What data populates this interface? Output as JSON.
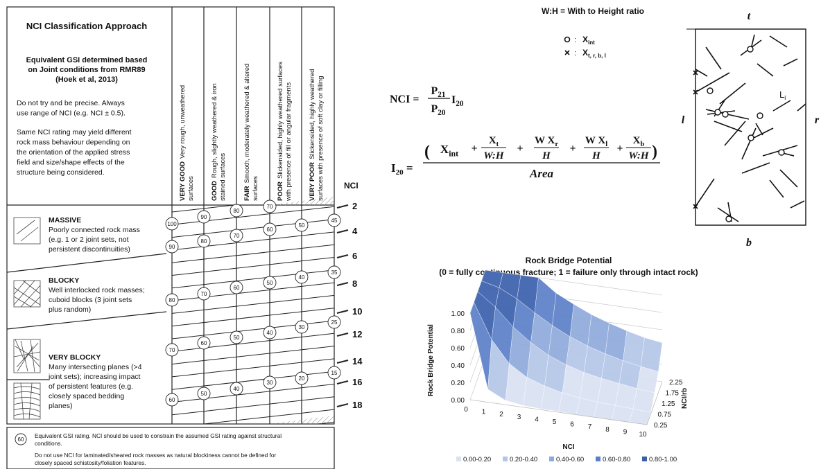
{
  "classification": {
    "title": "NCI Classification Approach",
    "subtitle": [
      "Equivalent GSI determined based",
      "on Joint conditions from RMR89",
      "(Hoek et al, 2013)"
    ],
    "notes": [
      [
        "Do not try and be precise. Always",
        "use range of NCI (e.g. NCI ± 0.5)."
      ],
      [
        "Same NCI rating may yield different",
        "rock mass behaviour depending on",
        "the orientation of the applied stress",
        "field and size/shape effects of the",
        "structure being considered."
      ]
    ],
    "conditions": [
      {
        "label": "VERY GOOD",
        "lines": [
          "Very rough, unweathered",
          "surfaces"
        ]
      },
      {
        "label": "GOOD",
        "lines": [
          "Rough, slightly weathered & iron",
          "stained surfaces"
        ]
      },
      {
        "label": "FAIR",
        "lines": [
          "Smooth, moderately weathered & altered",
          "surfaces"
        ]
      },
      {
        "label": "POOR",
        "lines": [
          "Slickensided, highly weathered surfaces",
          "with presence of fill or angular fragments"
        ]
      },
      {
        "label": "VERY POOR",
        "lines": [
          "Slickensided, highly weathered",
          "surfaces with presence of soft clay or filling"
        ]
      }
    ],
    "nci_label": "NCI",
    "nci_ticks": [
      2,
      4,
      6,
      8,
      10,
      12,
      14,
      16,
      18
    ],
    "structures": [
      {
        "label": "MASSIVE",
        "lines": [
          "Poorly connected rock mass",
          "(e.g. 1 or 2 joint sets, not",
          "persistent discontinuities)"
        ]
      },
      {
        "label": "BLOCKY",
        "lines": [
          "Well interlocked rock masses;",
          "cuboid blocks (3 joint sets",
          "plus random)"
        ]
      },
      {
        "label": "VERY BLOCKY",
        "lines": [
          "Many intersecting planes (>4",
          "joint sets); increasing impact",
          "of persistent features (e.g.",
          "closely spaced bedding",
          "planes)"
        ]
      }
    ],
    "gsi_ratings": [
      [
        100,
        90,
        80,
        70,
        60
      ],
      [
        90,
        80,
        70,
        60,
        50
      ],
      [
        80,
        70,
        60,
        50,
        40
      ],
      [
        70,
        60,
        50,
        40,
        30
      ],
      [
        50,
        40,
        30,
        20
      ],
      [
        45,
        35,
        25,
        15
      ]
    ],
    "footnote_symbol": 60,
    "footnotes": [
      [
        "Equivalent GSI rating. NCI should be used to constrain the assumed GSI rating against structural",
        "conditions."
      ],
      [
        "Do not use NCI for laminated/sheared rock masses as natural blockiness cannot be defined for",
        "closely spaced schistosity/foliation features."
      ]
    ]
  },
  "formulas": {
    "ratio_note": "W:H = With to Height ratio",
    "symbols": [
      {
        "sep": ":",
        "name": "X",
        "sub": "int"
      },
      {
        "sep": ":",
        "name": "X",
        "sub": "t, r, b, l"
      }
    ],
    "nci": {
      "lhs": "NCI =",
      "num": [
        "P",
        "21"
      ],
      "den": [
        "P",
        "20"
      ],
      "tail": [
        "I",
        "20"
      ]
    },
    "i20": {
      "lhs": [
        "I",
        "20",
        " ="
      ],
      "open": "(",
      "close": ")",
      "plus": "+",
      "den": "Area",
      "terms": [
        {
          "num": [
            "X",
            "int"
          ]
        },
        {
          "num": [
            "X",
            "t"
          ],
          "den": "W:H"
        },
        {
          "num": [
            "W X",
            "r"
          ],
          "den": "H"
        },
        {
          "num": [
            "W X",
            "l"
          ],
          "den": "H"
        },
        {
          "num": [
            "X",
            "b"
          ],
          "den": "W:H"
        }
      ]
    }
  },
  "diagram": {
    "top": "t",
    "bottom": "b",
    "left": "l",
    "right": "r",
    "segment": [
      "L",
      "i"
    ]
  },
  "chart_data": {
    "type": "surface",
    "title": "Rock Bridge Potential",
    "subtitle": "(0 = fully continuous fracture; 1 = failure only through intact rock)",
    "x_label": "NCI",
    "y_label": "Rock Bridge Potential",
    "z_label": "NCI/rb",
    "x": [
      0,
      1,
      2,
      3,
      4,
      5,
      6,
      7,
      8,
      9,
      10
    ],
    "z": [
      0.25,
      0.75,
      1.25,
      1.75,
      2.25
    ],
    "values": [
      [
        1.0,
        0.15,
        0.05,
        0.02,
        0.01,
        0.01,
        0,
        0,
        0,
        0,
        0
      ],
      [
        1.0,
        0.6,
        0.35,
        0.22,
        0.15,
        0.1,
        0.07,
        0.05,
        0.04,
        0.03,
        0.02
      ],
      [
        1.0,
        0.85,
        0.65,
        0.5,
        0.38,
        0.3,
        0.24,
        0.2,
        0.17,
        0.14,
        0.12
      ],
      [
        1.0,
        0.95,
        0.85,
        0.72,
        0.6,
        0.5,
        0.42,
        0.36,
        0.31,
        0.27,
        0.24
      ],
      [
        1.0,
        1.0,
        1.0,
        1.0,
        0.85,
        0.75,
        0.66,
        0.59,
        0.53,
        0.48,
        0.45
      ]
    ],
    "ylim": [
      0,
      1
    ],
    "yticks": [
      {
        "value": 0,
        "label": "0.00"
      },
      {
        "value": 0.2,
        "label": "0.20"
      },
      {
        "value": 0.4,
        "label": "0.40"
      },
      {
        "value": 0.6,
        "label": "0.60"
      },
      {
        "value": 0.8,
        "label": "0.80"
      },
      {
        "value": 1,
        "label": "1.00"
      }
    ],
    "grid": true,
    "bands": [
      {
        "name": "0.00-0.20",
        "color": "#d9e1f2"
      },
      {
        "name": "0.20-0.40",
        "color": "#b4c6e7"
      },
      {
        "name": "0.40-0.60",
        "color": "#8ea9db"
      },
      {
        "name": "0.60-0.80",
        "color": "#5b7fc7"
      },
      {
        "name": "0.80-1.00",
        "color": "#3a5fad"
      }
    ]
  }
}
